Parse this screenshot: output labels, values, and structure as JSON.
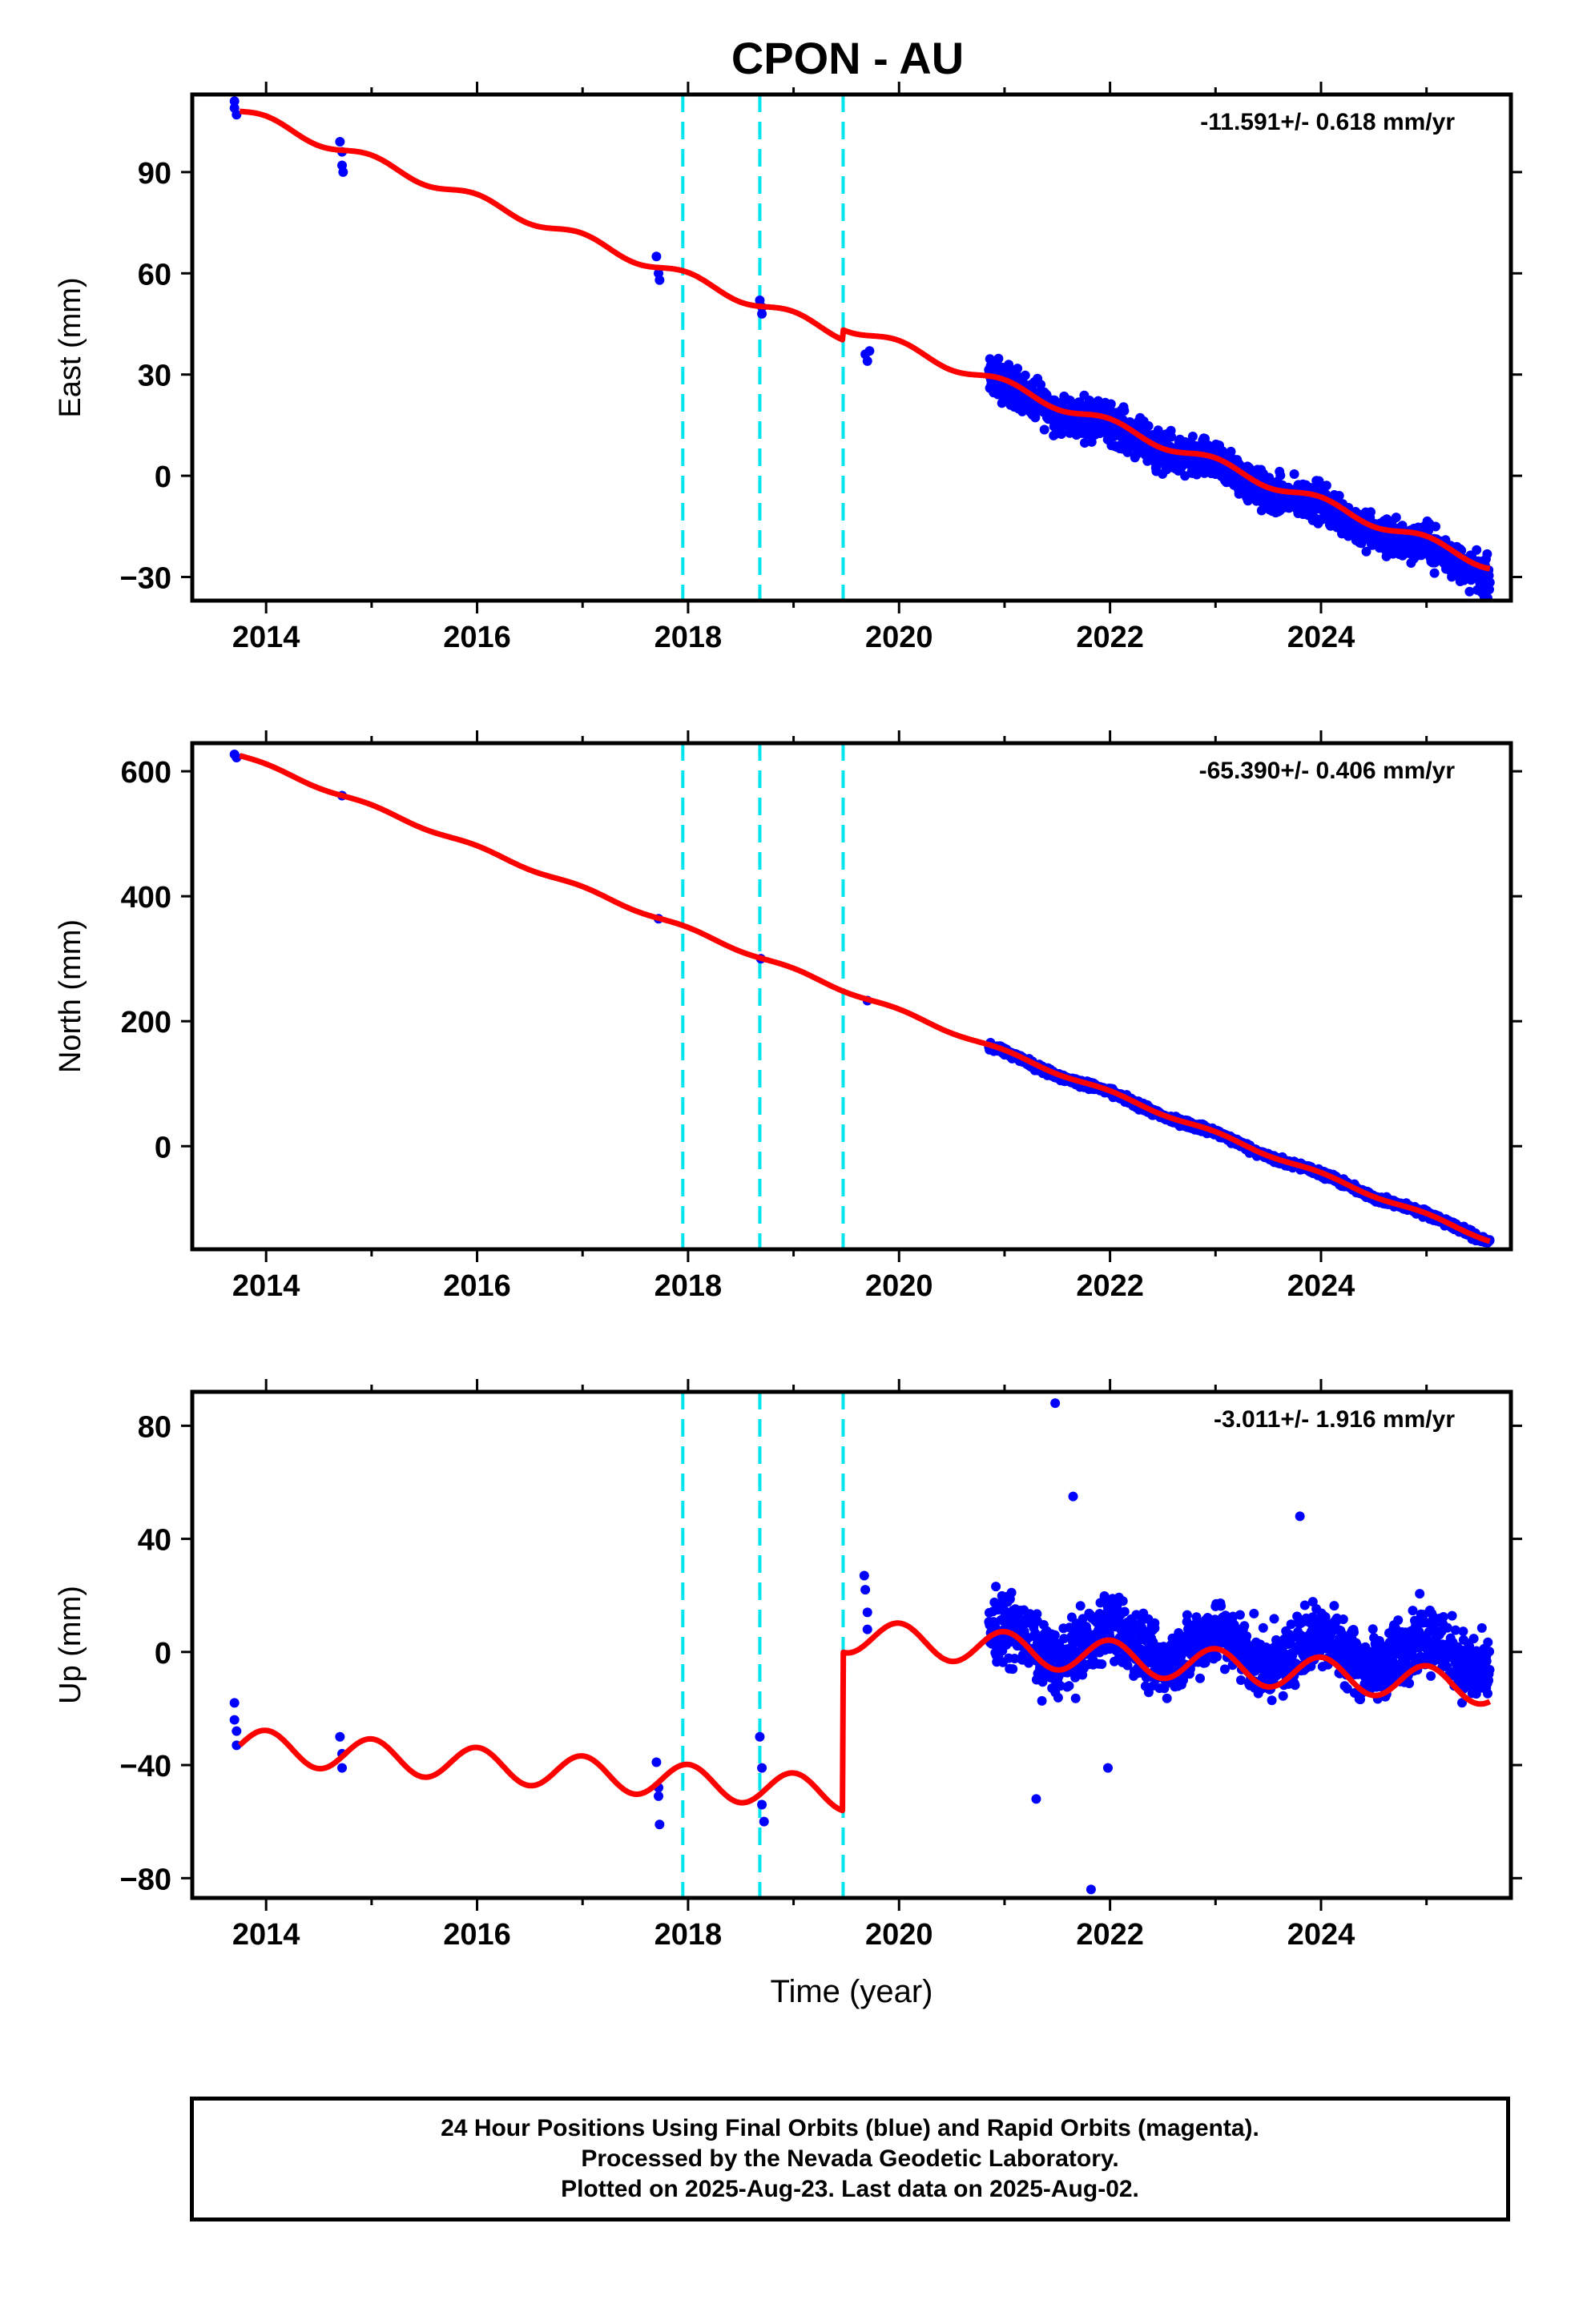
{
  "page": {
    "title": "CPON - AU"
  },
  "footer": {
    "line1": "24 Hour Positions Using Final Orbits (blue) and Rapid Orbits (magenta).",
    "line2": "Processed by the Nevada Geodetic Laboratory.",
    "line3": "Plotted on 2025-Aug-23. Last data on 2025-Aug-02."
  },
  "colors": {
    "data": "#0000ff",
    "model": "#ff0000",
    "offsets": "#00e5ee",
    "frame": "#000000"
  },
  "chart_data": [
    {
      "type": "scatter",
      "title": "CPON - AU",
      "xlabel": "",
      "ylabel": "East (mm)",
      "rate_label": "-11.591+/- 0.618 mm/yr",
      "xlim": [
        2013.3,
        2025.8
      ],
      "ylim": [
        -37,
        113
      ],
      "xticks": [
        2014,
        2016,
        2018,
        2020,
        2022,
        2024
      ],
      "xtick_labels": [
        "2014",
        "2016",
        "2018",
        "2020",
        "2022",
        "2024"
      ],
      "yticks": [
        -30,
        0,
        30,
        60,
        90
      ],
      "ytick_labels": [
        "−30",
        "0",
        "30",
        "60",
        "90"
      ],
      "offset_lines": [
        2017.95,
        2018.68,
        2019.47
      ],
      "sparse_points": [
        [
          2013.7,
          111
        ],
        [
          2013.7,
          109
        ],
        [
          2013.72,
          107
        ],
        [
          2014.7,
          99
        ],
        [
          2014.72,
          96
        ],
        [
          2014.72,
          92
        ],
        [
          2014.73,
          90
        ],
        [
          2017.7,
          65
        ],
        [
          2017.72,
          60
        ],
        [
          2017.73,
          58
        ],
        [
          2018.68,
          52
        ],
        [
          2018.7,
          50
        ],
        [
          2018.7,
          48
        ],
        [
          2019.68,
          36
        ],
        [
          2019.7,
          34
        ],
        [
          2019.72,
          37
        ]
      ],
      "dense_series": {
        "start": 2020.85,
        "end": 2025.6,
        "trend_start": 28,
        "trend_end": -29,
        "scatter": 5
      },
      "model": {
        "rate": -11.591,
        "value_at_start": 108,
        "start": 2013.75,
        "end": 2025.6,
        "seasonal_amp": 1.5,
        "offset_at": 2019.47,
        "offset_size": 3
      }
    },
    {
      "type": "scatter",
      "xlabel": "",
      "ylabel": "North (mm)",
      "rate_label": "-65.390+/- 0.406 mm/yr",
      "xlim": [
        2013.3,
        2025.8
      ],
      "ylim": [
        -165,
        645
      ],
      "xticks": [
        2014,
        2016,
        2018,
        2020,
        2022,
        2024
      ],
      "xtick_labels": [
        "2014",
        "2016",
        "2018",
        "2020",
        "2022",
        "2024"
      ],
      "yticks": [
        0,
        200,
        400,
        600
      ],
      "ytick_labels": [
        "0",
        "200",
        "400",
        "600"
      ],
      "offset_lines": [
        2017.95,
        2018.68,
        2019.47
      ],
      "sparse_points": [
        [
          2013.7,
          627
        ],
        [
          2013.72,
          622
        ],
        [
          2014.72,
          561
        ],
        [
          2017.72,
          364
        ],
        [
          2018.69,
          300
        ],
        [
          2019.7,
          233
        ]
      ],
      "dense_series": {
        "start": 2020.85,
        "end": 2025.6,
        "trend_start": 158,
        "trend_end": -150,
        "scatter": 5
      },
      "model": {
        "rate": -65.39,
        "value_at_start": 625,
        "start": 2013.75,
        "end": 2025.6,
        "seasonal_amp": 3,
        "offset_at": 2019.47,
        "offset_size": 0
      }
    },
    {
      "type": "scatter",
      "xlabel": "Time (year)",
      "ylabel": "Up (mm)",
      "rate_label": "-3.011+/- 1.916 mm/yr",
      "xlim": [
        2013.3,
        2025.8
      ],
      "ylim": [
        -87,
        92
      ],
      "xticks": [
        2014,
        2016,
        2018,
        2020,
        2022,
        2024
      ],
      "xtick_labels": [
        "2014",
        "2016",
        "2018",
        "2020",
        "2022",
        "2024"
      ],
      "yticks": [
        -80,
        -40,
        0,
        40,
        80
      ],
      "ytick_labels": [
        "−80",
        "−40",
        "0",
        "40",
        "80"
      ],
      "offset_lines": [
        2017.95,
        2018.68,
        2019.47
      ],
      "sparse_points": [
        [
          2013.7,
          -18
        ],
        [
          2013.7,
          -24
        ],
        [
          2013.72,
          -28
        ],
        [
          2013.72,
          -33
        ],
        [
          2014.7,
          -30
        ],
        [
          2014.72,
          -36
        ],
        [
          2014.72,
          -41
        ],
        [
          2017.7,
          -39
        ],
        [
          2017.72,
          -48
        ],
        [
          2017.72,
          -51
        ],
        [
          2017.73,
          -61
        ],
        [
          2018.68,
          -30
        ],
        [
          2018.7,
          -41
        ],
        [
          2018.7,
          -54
        ],
        [
          2018.72,
          -60
        ],
        [
          2019.67,
          27
        ],
        [
          2019.68,
          22
        ],
        [
          2019.7,
          14
        ],
        [
          2019.7,
          8
        ],
        [
          2021.48,
          88
        ],
        [
          2021.3,
          -52
        ],
        [
          2021.82,
          -84
        ],
        [
          2021.98,
          -41
        ],
        [
          2023.8,
          48
        ],
        [
          2021.65,
          55
        ]
      ],
      "dense_series": {
        "start": 2020.85,
        "end": 2025.6,
        "trend_start": 3,
        "trend_end": -1,
        "scatter": 10
      },
      "model": {
        "rate": -3.011,
        "value_at_start": -33,
        "start": 2013.75,
        "end": 2025.6,
        "seasonal_amp": 6,
        "offset_at": 2019.47,
        "offset_size": 56
      }
    }
  ]
}
